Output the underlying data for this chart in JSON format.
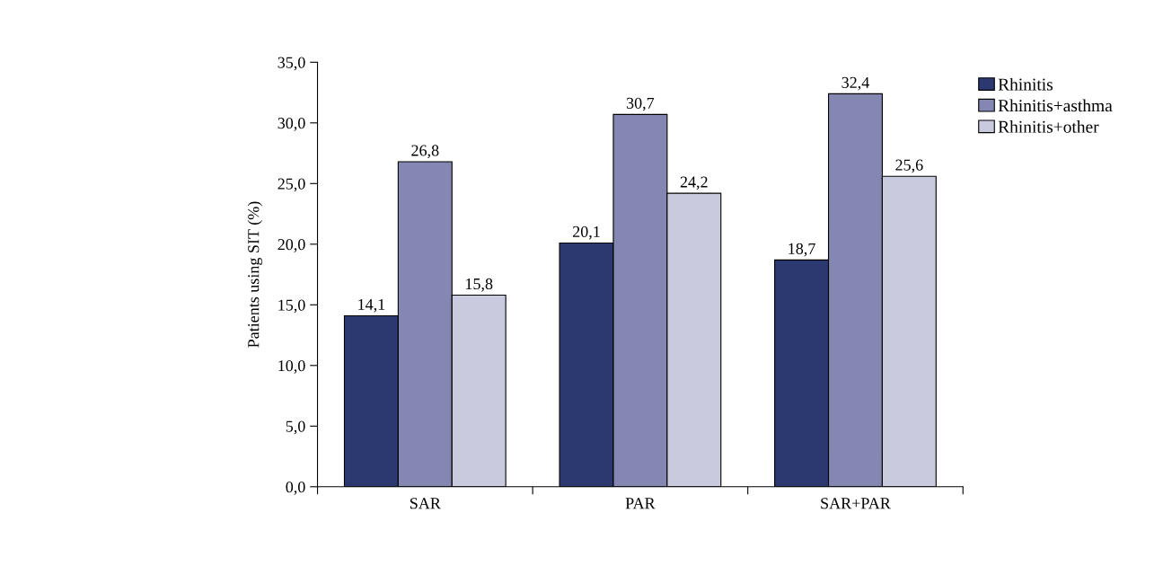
{
  "chart_data": {
    "type": "bar",
    "ylabel": "Patients using SIT (%)",
    "categories": [
      "SAR",
      "PAR",
      "SAR+PAR"
    ],
    "series": [
      {
        "name": "Rhinitis",
        "color": "#2b3970",
        "values": [
          14.1,
          20.1,
          18.7
        ],
        "value_labels": [
          "14,1",
          "20,1",
          "18,7"
        ]
      },
      {
        "name": "Rhinitis+asthma",
        "color": "#8487b1",
        "values": [
          26.8,
          30.7,
          32.4
        ],
        "value_labels": [
          "26,8",
          "30,7",
          "32,4"
        ]
      },
      {
        "name": "Rhinitis+other",
        "color": "#c9cadd",
        "values": [
          15.8,
          24.2,
          25.6
        ],
        "value_labels": [
          "15,8",
          "24,2",
          "25,6"
        ]
      }
    ],
    "ylim": [
      0,
      35
    ],
    "yticks": [
      {
        "value": 0,
        "label": "0,0"
      },
      {
        "value": 5,
        "label": "5,0"
      },
      {
        "value": 10,
        "label": "10,0"
      },
      {
        "value": 15,
        "label": "15,0"
      },
      {
        "value": 20,
        "label": "20,0"
      },
      {
        "value": 25,
        "label": "25,0"
      },
      {
        "value": 30,
        "label": "30,0"
      },
      {
        "value": 35,
        "label": "35,0"
      }
    ],
    "grid": false,
    "legend": "top right"
  }
}
